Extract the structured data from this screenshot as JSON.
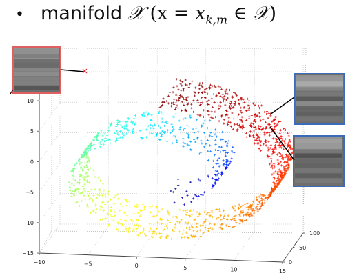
{
  "slide": {
    "bullet": "•",
    "title_word": "manifold",
    "title_symbol": "𝒳",
    "title_paren_open": "(x = ",
    "title_var": "x",
    "title_sub": "k,m",
    "title_in": " ∈ ",
    "title_symbol2": "𝒳",
    "title_paren_close": ")"
  },
  "chart_data": {
    "type": "scatter",
    "projection": "3d",
    "shape": "swiss-roll manifold",
    "colormap": "jet",
    "x_ticks": [
      "−10",
      "−5",
      "0",
      "5",
      "10",
      "15"
    ],
    "y_ticks": [
      "0",
      "50",
      "100"
    ],
    "z_ticks": [
      "10",
      "5",
      "0",
      "−5",
      "−10",
      "−15"
    ],
    "xlim": [
      -10,
      15
    ],
    "ylim": [
      0,
      100
    ],
    "zlim": [
      -15,
      10
    ],
    "grid": true,
    "marker": "+",
    "highlighted_point_marker": "×",
    "highlighted_point_color": "#e02020",
    "thumbnails": [
      {
        "name": "sample-image-top-left",
        "border_color": "#e06060"
      },
      {
        "name": "sample-image-right-top",
        "border_color": "#3a6ab8"
      },
      {
        "name": "sample-image-right-bottom",
        "border_color": "#3a6ab8"
      }
    ]
  }
}
